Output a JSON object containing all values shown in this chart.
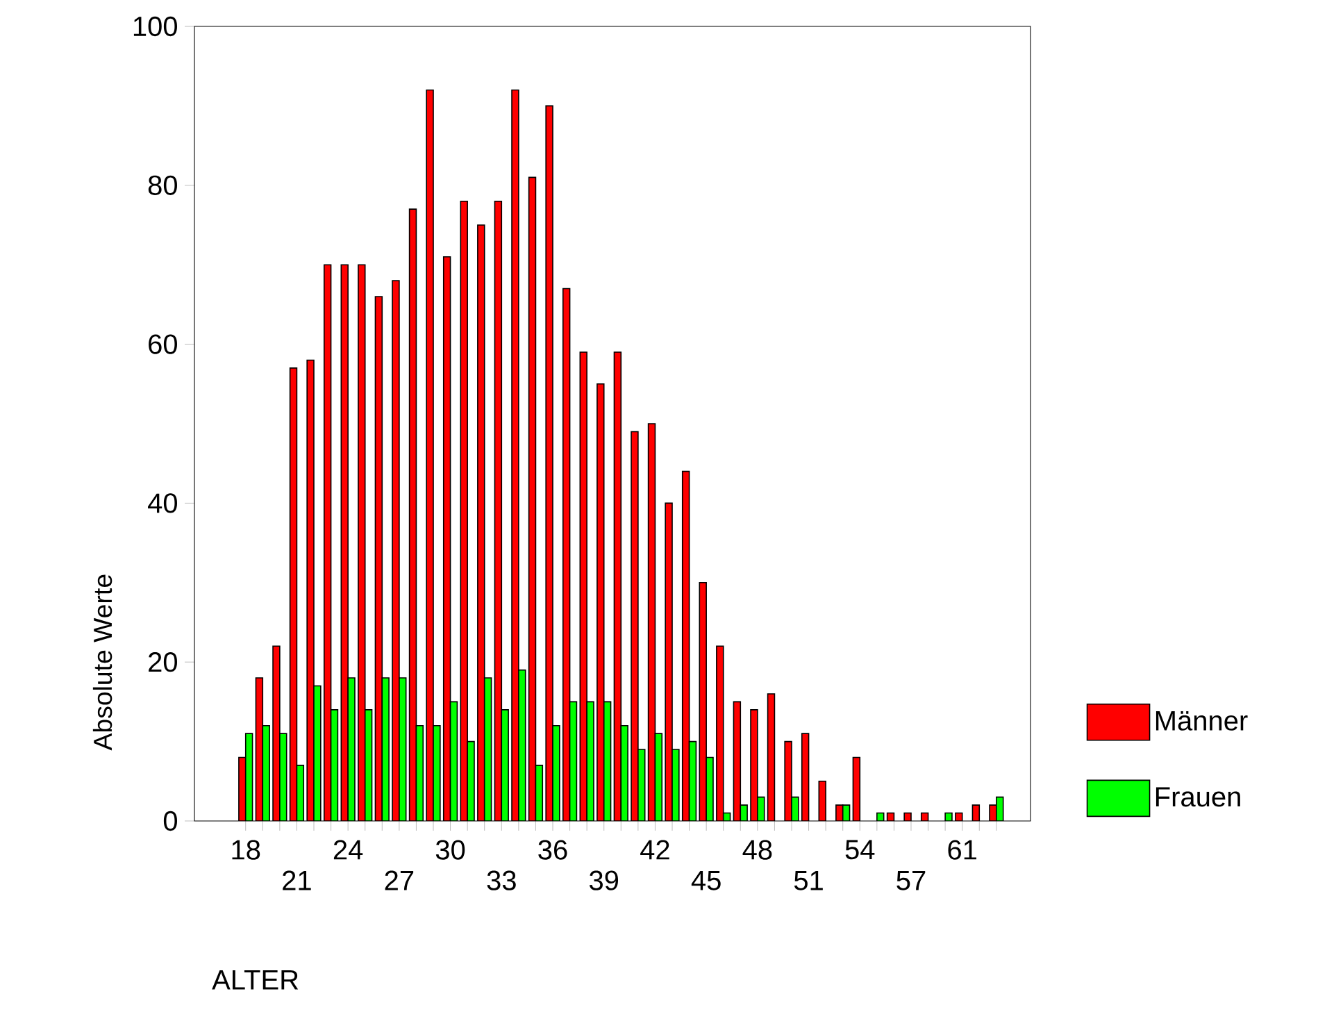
{
  "chart_data": {
    "type": "bar",
    "xlabel": "ALTER",
    "ylabel": "Absolute Werte",
    "categories": [
      "18",
      null,
      null,
      "21",
      null,
      null,
      "24",
      null,
      null,
      "27",
      null,
      null,
      "30",
      null,
      null,
      "33",
      null,
      null,
      "36",
      null,
      null,
      "39",
      null,
      null,
      "42",
      null,
      null,
      "45",
      null,
      null,
      "48",
      null,
      null,
      "51",
      null,
      null,
      "54",
      null,
      null,
      "57",
      null,
      null,
      "61",
      null,
      null
    ],
    "series": [
      {
        "name": "Männer",
        "color": "#ff0000",
        "values": [
          8,
          18,
          22,
          57,
          58,
          70,
          70,
          70,
          66,
          68,
          77,
          92,
          71,
          78,
          75,
          78,
          92,
          81,
          90,
          67,
          59,
          55,
          59,
          49,
          50,
          40,
          44,
          30,
          22,
          15,
          14,
          16,
          10,
          11,
          5,
          2,
          8,
          0,
          1,
          1,
          1,
          0,
          1,
          2,
          2
        ]
      },
      {
        "name": "Frauen",
        "color": "#00ff00",
        "values": [
          11,
          12,
          11,
          7,
          17,
          14,
          18,
          14,
          18,
          18,
          12,
          12,
          15,
          10,
          18,
          14,
          19,
          7,
          12,
          15,
          15,
          15,
          12,
          9,
          11,
          9,
          10,
          8,
          1,
          2,
          3,
          0,
          3,
          0,
          0,
          2,
          0,
          1,
          0,
          0,
          0,
          1,
          0,
          0,
          3
        ]
      }
    ],
    "ylim": [
      0,
      100
    ],
    "yticks": [
      0,
      20,
      40,
      60,
      80,
      100
    ],
    "legend": "right"
  }
}
